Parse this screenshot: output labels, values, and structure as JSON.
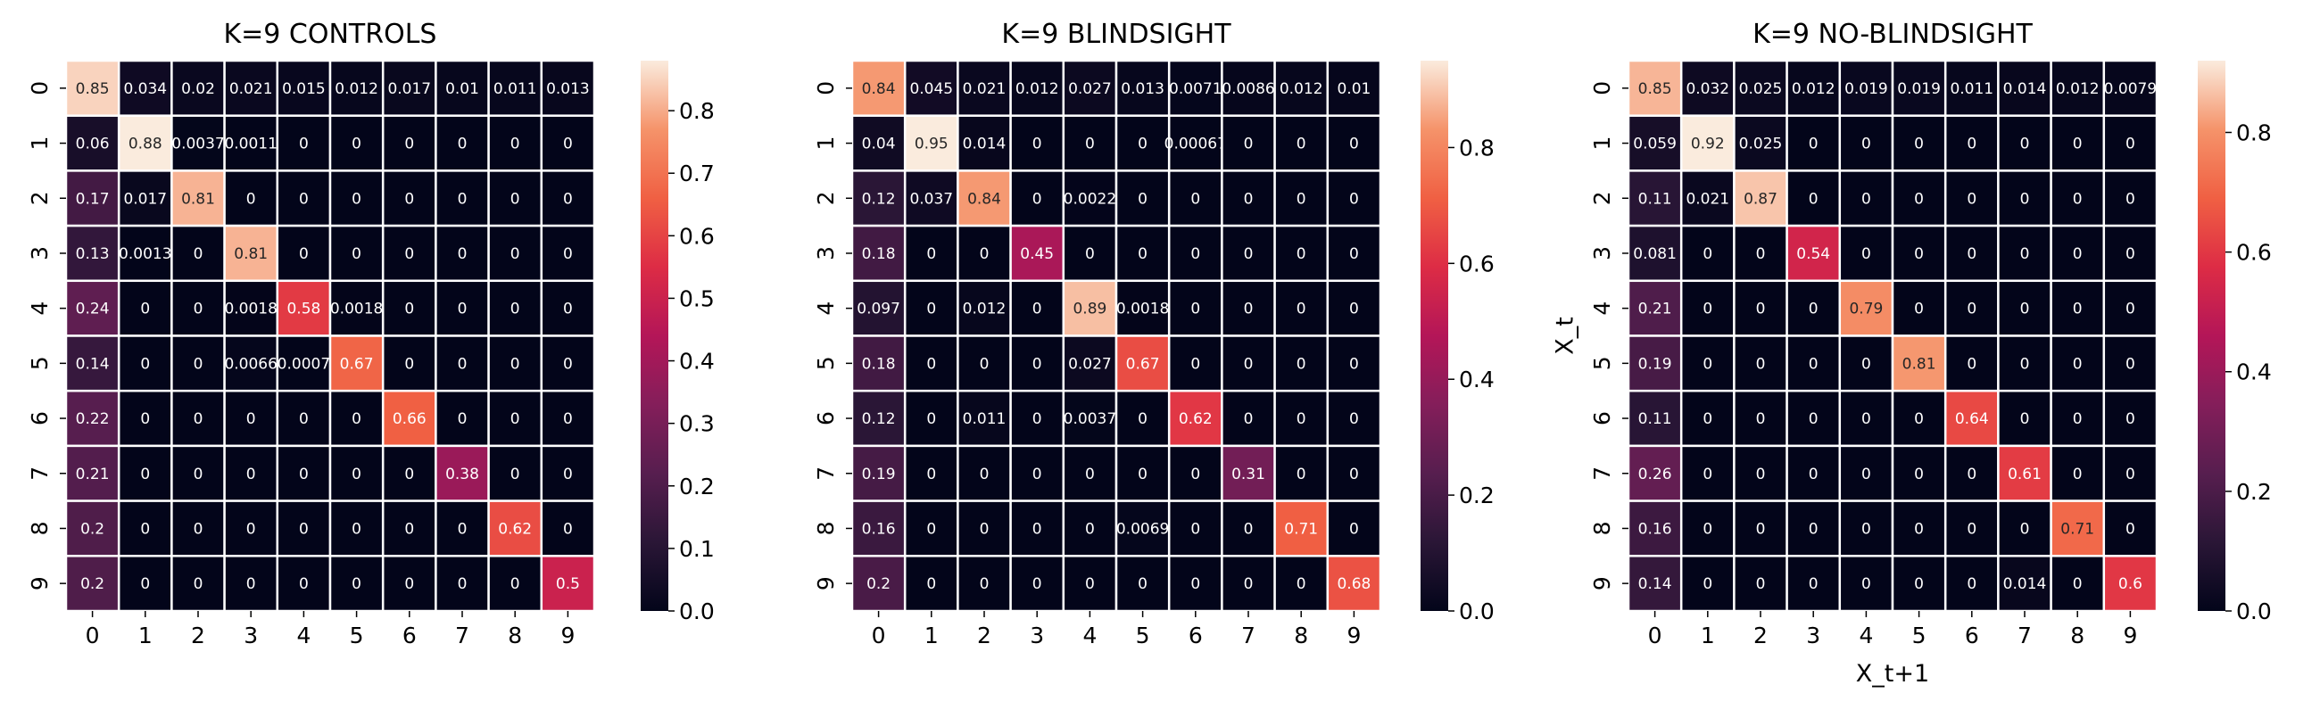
{
  "chart_data": [
    {
      "type": "heatmap",
      "title": "K=9 CONTROLS",
      "xlabel": "",
      "ylabel": "",
      "x_categories": [
        "0",
        "1",
        "2",
        "3",
        "4",
        "5",
        "6",
        "7",
        "8",
        "9"
      ],
      "y_categories": [
        "0",
        "1",
        "2",
        "3",
        "4",
        "5",
        "6",
        "7",
        "8",
        "9"
      ],
      "values": [
        [
          0.85,
          0.034,
          0.02,
          0.021,
          0.015,
          0.012,
          0.017,
          0.01,
          0.011,
          0.013
        ],
        [
          0.06,
          0.88,
          0.0037,
          0.0011,
          0,
          0,
          0,
          0,
          0,
          0
        ],
        [
          0.17,
          0.017,
          0.81,
          0,
          0,
          0,
          0,
          0,
          0,
          0
        ],
        [
          0.13,
          0.0013,
          0,
          0.81,
          0,
          0,
          0,
          0,
          0,
          0
        ],
        [
          0.24,
          0,
          0,
          0.0018,
          0.58,
          0.0018,
          0,
          0,
          0,
          0
        ],
        [
          0.14,
          0,
          0,
          0.0066,
          0.0007,
          0.67,
          0,
          0,
          0,
          0
        ],
        [
          0.22,
          0,
          0,
          0,
          0,
          0,
          0.66,
          0,
          0,
          0
        ],
        [
          0.21,
          0,
          0,
          0,
          0,
          0,
          0,
          0.38,
          0,
          0
        ],
        [
          0.2,
          0,
          0,
          0,
          0,
          0,
          0,
          0,
          0.62,
          0
        ],
        [
          0.2,
          0,
          0,
          0,
          0,
          0,
          0,
          0,
          0,
          0.5
        ]
      ],
      "labels": [
        [
          "0.85",
          "0.034",
          "0.02",
          "0.021",
          "0.015",
          "0.012",
          "0.017",
          "0.01",
          "0.011",
          "0.013"
        ],
        [
          "0.06",
          "0.88",
          "0.0037",
          "0.0011",
          "0",
          "0",
          "0",
          "0",
          "0",
          "0"
        ],
        [
          "0.17",
          "0.017",
          "0.81",
          "0",
          "0",
          "0",
          "0",
          "0",
          "0",
          "0"
        ],
        [
          "0.13",
          "0.0013",
          "0",
          "0.81",
          "0",
          "0",
          "0",
          "0",
          "0",
          "0"
        ],
        [
          "0.24",
          "0",
          "0",
          "0.0018",
          "0.58",
          "0.0018",
          "0",
          "0",
          "0",
          "0"
        ],
        [
          "0.14",
          "0",
          "0",
          "0.0066",
          "0.0007",
          "0.67",
          "0",
          "0",
          "0",
          "0"
        ],
        [
          "0.22",
          "0",
          "0",
          "0",
          "0",
          "0",
          "0.66",
          "0",
          "0",
          "0"
        ],
        [
          "0.21",
          "0",
          "0",
          "0",
          "0",
          "0",
          "0",
          "0.38",
          "0",
          "0"
        ],
        [
          "0.2",
          "0",
          "0",
          "0",
          "0",
          "0",
          "0",
          "0",
          "0.62",
          "0"
        ],
        [
          "0.2",
          "0",
          "0",
          "0",
          "0",
          "0",
          "0",
          "0",
          "0",
          "0.5"
        ]
      ],
      "colorbar": {
        "range": [
          0,
          0.88
        ],
        "ticks": [
          0.0,
          0.1,
          0.2,
          0.3,
          0.4,
          0.5,
          0.6,
          0.7,
          0.8
        ],
        "tick_labels": [
          "0.0",
          "0.1",
          "0.2",
          "0.3",
          "0.4",
          "0.5",
          "0.6",
          "0.7",
          "0.8"
        ]
      },
      "colormap": "rocket",
      "grid": true
    },
    {
      "type": "heatmap",
      "title": "K=9 BLINDSIGHT",
      "xlabel": "",
      "ylabel": "",
      "x_categories": [
        "0",
        "1",
        "2",
        "3",
        "4",
        "5",
        "6",
        "7",
        "8",
        "9"
      ],
      "y_categories": [
        "0",
        "1",
        "2",
        "3",
        "4",
        "5",
        "6",
        "7",
        "8",
        "9"
      ],
      "values": [
        [
          0.84,
          0.045,
          0.021,
          0.012,
          0.027,
          0.013,
          0.0071,
          0.0086,
          0.012,
          0.01
        ],
        [
          0.04,
          0.95,
          0.014,
          0,
          0,
          0,
          0.00067,
          0,
          0,
          0
        ],
        [
          0.12,
          0.037,
          0.84,
          0,
          0.0022,
          0,
          0,
          0,
          0,
          0
        ],
        [
          0.18,
          0,
          0,
          0.45,
          0,
          0,
          0,
          0,
          0,
          0
        ],
        [
          0.097,
          0,
          0.012,
          0,
          0.89,
          0.0018,
          0,
          0,
          0,
          0
        ],
        [
          0.18,
          0,
          0,
          0,
          0.027,
          0.67,
          0,
          0,
          0,
          0
        ],
        [
          0.12,
          0,
          0.011,
          0,
          0.0037,
          0,
          0.62,
          0,
          0,
          0
        ],
        [
          0.19,
          0,
          0,
          0,
          0,
          0,
          0,
          0.31,
          0,
          0
        ],
        [
          0.16,
          0,
          0,
          0,
          0,
          0.0069,
          0,
          0,
          0.71,
          0
        ],
        [
          0.2,
          0,
          0,
          0,
          0,
          0,
          0,
          0,
          0,
          0.68
        ]
      ],
      "labels": [
        [
          "0.84",
          "0.045",
          "0.021",
          "0.012",
          "0.027",
          "0.013",
          "0.0071",
          "0.0086",
          "0.012",
          "0.01"
        ],
        [
          "0.04",
          "0.95",
          "0.014",
          "0",
          "0",
          "0",
          "0.00067",
          "0",
          "0",
          "0"
        ],
        [
          "0.12",
          "0.037",
          "0.84",
          "0",
          "0.0022",
          "0",
          "0",
          "0",
          "0",
          "0"
        ],
        [
          "0.18",
          "0",
          "0",
          "0.45",
          "0",
          "0",
          "0",
          "0",
          "0",
          "0"
        ],
        [
          "0.097",
          "0",
          "0.012",
          "0",
          "0.89",
          "0.0018",
          "0",
          "0",
          "0",
          "0"
        ],
        [
          "0.18",
          "0",
          "0",
          "0",
          "0.027",
          "0.67",
          "0",
          "0",
          "0",
          "0"
        ],
        [
          "0.12",
          "0",
          "0.011",
          "0",
          "0.0037",
          "0",
          "0.62",
          "0",
          "0",
          "0"
        ],
        [
          "0.19",
          "0",
          "0",
          "0",
          "0",
          "0",
          "0",
          "0.31",
          "0",
          "0"
        ],
        [
          "0.16",
          "0",
          "0",
          "0",
          "0",
          "0.0069",
          "0",
          "0",
          "0.71",
          "0"
        ],
        [
          "0.2",
          "0",
          "0",
          "0",
          "0",
          "0",
          "0",
          "0",
          "0",
          "0.68"
        ]
      ],
      "colorbar": {
        "range": [
          0,
          0.95
        ],
        "ticks": [
          0.0,
          0.2,
          0.4,
          0.6,
          0.8
        ],
        "tick_labels": [
          "0.0",
          "0.2",
          "0.4",
          "0.6",
          "0.8"
        ]
      },
      "colormap": "rocket",
      "grid": true
    },
    {
      "type": "heatmap",
      "title": "K=9 NO-BLINDSIGHT",
      "xlabel": "X_t+1",
      "ylabel": "X_t",
      "x_categories": [
        "0",
        "1",
        "2",
        "3",
        "4",
        "5",
        "6",
        "7",
        "8",
        "9"
      ],
      "y_categories": [
        "0",
        "1",
        "2",
        "3",
        "4",
        "5",
        "6",
        "7",
        "8",
        "9"
      ],
      "values": [
        [
          0.85,
          0.032,
          0.025,
          0.012,
          0.019,
          0.019,
          0.011,
          0.014,
          0.012,
          0.0079
        ],
        [
          0.059,
          0.92,
          0.025,
          0,
          0,
          0,
          0,
          0,
          0,
          0
        ],
        [
          0.11,
          0.021,
          0.87,
          0,
          0,
          0,
          0,
          0,
          0,
          0
        ],
        [
          0.081,
          0,
          0,
          0.54,
          0,
          0,
          0,
          0,
          0,
          0
        ],
        [
          0.21,
          0,
          0,
          0,
          0.79,
          0,
          0,
          0,
          0,
          0
        ],
        [
          0.19,
          0,
          0,
          0,
          0,
          0.81,
          0,
          0,
          0,
          0
        ],
        [
          0.11,
          0,
          0,
          0,
          0,
          0,
          0.64,
          0,
          0,
          0
        ],
        [
          0.26,
          0,
          0,
          0,
          0,
          0,
          0,
          0.61,
          0,
          0
        ],
        [
          0.16,
          0,
          0,
          0,
          0,
          0,
          0,
          0,
          0.71,
          0
        ],
        [
          0.14,
          0,
          0,
          0,
          0,
          0,
          0,
          0.014,
          0,
          0.6
        ]
      ],
      "labels": [
        [
          "0.85",
          "0.032",
          "0.025",
          "0.012",
          "0.019",
          "0.019",
          "0.011",
          "0.014",
          "0.012",
          "0.0079"
        ],
        [
          "0.059",
          "0.92",
          "0.025",
          "0",
          "0",
          "0",
          "0",
          "0",
          "0",
          "0"
        ],
        [
          "0.11",
          "0.021",
          "0.87",
          "0",
          "0",
          "0",
          "0",
          "0",
          "0",
          "0"
        ],
        [
          "0.081",
          "0",
          "0",
          "0.54",
          "0",
          "0",
          "0",
          "0",
          "0",
          "0"
        ],
        [
          "0.21",
          "0",
          "0",
          "0",
          "0.79",
          "0",
          "0",
          "0",
          "0",
          "0"
        ],
        [
          "0.19",
          "0",
          "0",
          "0",
          "0",
          "0.81",
          "0",
          "0",
          "0",
          "0"
        ],
        [
          "0.11",
          "0",
          "0",
          "0",
          "0",
          "0",
          "0.64",
          "0",
          "0",
          "0"
        ],
        [
          "0.26",
          "0",
          "0",
          "0",
          "0",
          "0",
          "0",
          "0.61",
          "0",
          "0"
        ],
        [
          "0.16",
          "0",
          "0",
          "0",
          "0",
          "0",
          "0",
          "0",
          "0.71",
          "0"
        ],
        [
          "0.14",
          "0",
          "0",
          "0",
          "0",
          "0",
          "0",
          "0.014",
          "0",
          "0.6"
        ]
      ],
      "colorbar": {
        "range": [
          0,
          0.92
        ],
        "ticks": [
          0.0,
          0.2,
          0.4,
          0.6,
          0.8
        ],
        "tick_labels": [
          "0.0",
          "0.2",
          "0.4",
          "0.6",
          "0.8"
        ]
      },
      "colormap": "rocket",
      "grid": true
    }
  ]
}
